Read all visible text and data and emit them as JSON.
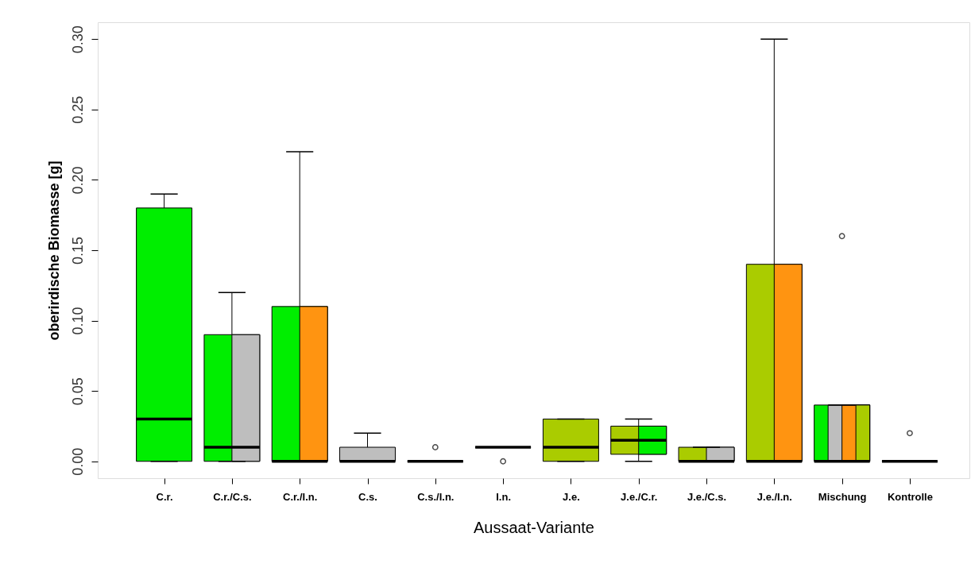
{
  "chart_data": {
    "type": "box",
    "xlabel": "Aussaat-Variante",
    "ylabel": "oberirdische Biomasse [g]",
    "categories": [
      "C.r.",
      "C.r./C.s.",
      "C.r./I.n.",
      "C.s.",
      "C.s./I.n.",
      "I.n.",
      "J.e.",
      "J.e./C.r.",
      "J.e./C.s.",
      "J.e./I.n.",
      "Mischung",
      "Kontrolle"
    ],
    "boxes": [
      {
        "low": 0,
        "q1": 0,
        "median": 0.03,
        "q3": 0.18,
        "high": 0.19
      },
      {
        "low": 0,
        "q1": 0,
        "median": 0.01,
        "q3": 0.09,
        "high": 0.12
      },
      {
        "low": 0,
        "q1": 0,
        "median": 0,
        "q3": 0.11,
        "high": 0.22
      },
      {
        "low": 0,
        "q1": 0,
        "median": 0,
        "q3": 0.01,
        "high": 0.02
      },
      {
        "low": 0,
        "q1": 0,
        "median": 0,
        "q3": 0,
        "high": 0,
        "outliers": [
          0.01
        ]
      },
      {
        "low": 0.01,
        "q1": 0.01,
        "median": 0.01,
        "q3": 0.01,
        "high": 0.01,
        "outliers": [
          0
        ]
      },
      {
        "low": 0,
        "q1": 0,
        "median": 0.01,
        "q3": 0.03,
        "high": 0.03
      },
      {
        "low": 0,
        "q1": 0.005,
        "median": 0.015,
        "q3": 0.025,
        "high": 0.03
      },
      {
        "low": 0,
        "q1": 0,
        "median": 0,
        "q3": 0.01,
        "high": 0.01
      },
      {
        "low": 0,
        "q1": 0,
        "median": 0,
        "q3": 0.14,
        "high": 0.3
      },
      {
        "low": 0,
        "q1": 0,
        "median": 0,
        "q3": 0.04,
        "high": 0.04,
        "outliers": [
          0.16
        ]
      },
      {
        "low": 0,
        "q1": 0,
        "median": 0,
        "q3": 0,
        "high": 0,
        "outliers": [
          0.02
        ]
      }
    ],
    "colors": [
      [
        "#00ee00"
      ],
      [
        "#00ee00",
        "#bebebe"
      ],
      [
        "#00ee00",
        "#ff9411"
      ],
      [
        "#bebebe"
      ],
      [
        "#bebebe",
        "#ff9411"
      ],
      [
        "#ff9411"
      ],
      [
        "#aacc00"
      ],
      [
        "#aacc00",
        "#00ee00"
      ],
      [
        "#aacc00",
        "#bebebe"
      ],
      [
        "#aacc00",
        "#ff9411"
      ],
      [
        "#00ee00",
        "#bebebe",
        "#ff9411",
        "#aacc00"
      ],
      [
        "#aacc00"
      ]
    ],
    "ylim": [
      -0.012,
      0.312
    ],
    "yticks": [
      {
        "value": 0,
        "label": "0.00"
      },
      {
        "value": 0.05,
        "label": "0.05"
      },
      {
        "value": 0.1,
        "label": "0.10"
      },
      {
        "value": 0.15,
        "label": "0.15"
      },
      {
        "value": 0.2,
        "label": "0.20"
      },
      {
        "value": 0.25,
        "label": "0.25"
      },
      {
        "value": 0.3,
        "label": "0.30"
      }
    ],
    "grid": false
  }
}
